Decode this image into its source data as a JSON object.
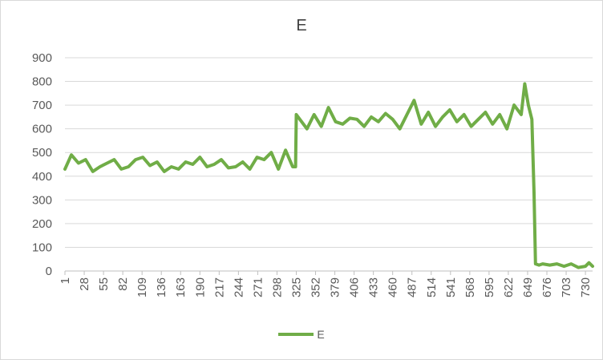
{
  "chart_data": {
    "type": "line",
    "title": "E",
    "xlabel": "",
    "ylabel": "",
    "ylim": [
      0,
      900
    ],
    "yticks": [
      0,
      100,
      200,
      300,
      400,
      500,
      600,
      700,
      800,
      900
    ],
    "xlim": [
      1,
      740
    ],
    "xticks": [
      1,
      28,
      55,
      82,
      109,
      136,
      163,
      190,
      217,
      244,
      271,
      298,
      325,
      352,
      379,
      406,
      433,
      460,
      487,
      514,
      541,
      568,
      595,
      622,
      649,
      676,
      703,
      730
    ],
    "grid": "horizontal",
    "legend_position": "bottom",
    "color": "#70ad47",
    "series": [
      {
        "name": "E",
        "x": [
          1,
          10,
          20,
          30,
          40,
          50,
          60,
          70,
          80,
          90,
          100,
          110,
          120,
          130,
          140,
          150,
          160,
          170,
          180,
          190,
          200,
          210,
          220,
          230,
          240,
          250,
          260,
          270,
          280,
          290,
          300,
          310,
          320,
          324,
          325,
          330,
          340,
          350,
          360,
          370,
          380,
          390,
          400,
          410,
          420,
          430,
          440,
          450,
          460,
          470,
          480,
          490,
          500,
          510,
          520,
          530,
          540,
          550,
          560,
          570,
          580,
          590,
          600,
          610,
          620,
          630,
          640,
          645,
          650,
          655,
          658,
          660,
          665,
          670,
          680,
          690,
          700,
          710,
          720,
          730,
          735,
          740
        ],
        "values": [
          430,
          490,
          455,
          470,
          420,
          440,
          455,
          470,
          430,
          440,
          470,
          480,
          445,
          460,
          420,
          440,
          430,
          460,
          450,
          480,
          440,
          450,
          470,
          435,
          440,
          460,
          430,
          480,
          470,
          500,
          430,
          510,
          440,
          440,
          660,
          640,
          600,
          660,
          610,
          690,
          630,
          620,
          645,
          640,
          610,
          650,
          630,
          665,
          640,
          600,
          660,
          720,
          620,
          670,
          610,
          650,
          680,
          630,
          660,
          610,
          640,
          670,
          620,
          660,
          600,
          700,
          660,
          790,
          700,
          640,
          330,
          30,
          25,
          30,
          25,
          30,
          20,
          30,
          15,
          20,
          35,
          20
        ]
      }
    ]
  },
  "legend": {
    "label": "E"
  }
}
